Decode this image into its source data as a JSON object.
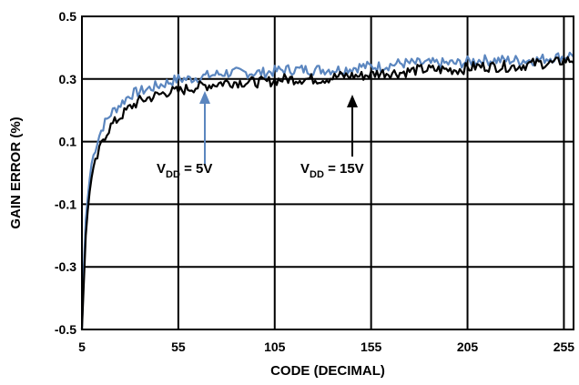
{
  "chart_data": {
    "type": "line",
    "title": "",
    "xlabel": "CODE (DECIMAL)",
    "ylabel": "GAIN ERROR (%)",
    "xlim": [
      5,
      260
    ],
    "ylim": [
      -0.5,
      0.5
    ],
    "xticks": [
      5,
      55,
      105,
      155,
      205,
      255
    ],
    "xtick_labels": [
      "5",
      "55",
      "105",
      "155",
      "205",
      "255"
    ],
    "yticks": [
      -0.5,
      -0.3,
      -0.1,
      0.1,
      0.3,
      0.5
    ],
    "ytick_labels": [
      "-0.5",
      "-0.3",
      "-0.1",
      "0.1",
      "0.3",
      "0.5"
    ],
    "grid": true,
    "series": [
      {
        "name": "",
        "color": "#5b86bf",
        "x": [
          5,
          6,
          7,
          8,
          9,
          10,
          12,
          14,
          16,
          18,
          20,
          25,
          30,
          35,
          40,
          45,
          50,
          55,
          60,
          70,
          80,
          90,
          100,
          110,
          120,
          130,
          140,
          150,
          160,
          170,
          180,
          190,
          200,
          210,
          220,
          230,
          240,
          250,
          255,
          260
        ],
        "values": [
          -0.5,
          -0.3,
          -0.15,
          -0.08,
          -0.02,
          0.03,
          0.08,
          0.12,
          0.15,
          0.17,
          0.19,
          0.22,
          0.25,
          0.26,
          0.27,
          0.28,
          0.29,
          0.3,
          0.3,
          0.31,
          0.32,
          0.32,
          0.32,
          0.33,
          0.33,
          0.33,
          0.33,
          0.34,
          0.34,
          0.35,
          0.35,
          0.35,
          0.35,
          0.36,
          0.36,
          0.36,
          0.36,
          0.37,
          0.37,
          0.38
        ]
      },
      {
        "name": "",
        "color": "#000000",
        "x": [
          5,
          6,
          7,
          8,
          9,
          10,
          12,
          14,
          16,
          18,
          20,
          25,
          30,
          35,
          40,
          45,
          50,
          55,
          60,
          70,
          80,
          90,
          100,
          110,
          120,
          130,
          140,
          150,
          160,
          170,
          180,
          190,
          200,
          210,
          220,
          230,
          240,
          250,
          255,
          260
        ],
        "values": [
          -0.5,
          -0.35,
          -0.2,
          -0.12,
          -0.06,
          -0.02,
          0.03,
          0.07,
          0.11,
          0.13,
          0.15,
          0.18,
          0.21,
          0.23,
          0.24,
          0.25,
          0.26,
          0.26,
          0.27,
          0.28,
          0.29,
          0.29,
          0.29,
          0.3,
          0.3,
          0.3,
          0.31,
          0.31,
          0.32,
          0.32,
          0.33,
          0.33,
          0.33,
          0.34,
          0.34,
          0.34,
          0.35,
          0.35,
          0.36,
          0.36
        ]
      }
    ],
    "annotations": [
      {
        "text_main": "V",
        "text_sub": "DD",
        "text_tail": " = 5V",
        "arrow_x": 66,
        "arrow_y": 0.3
      },
      {
        "text_main": "V",
        "text_sub": "DD",
        "text_tail": " = 15V",
        "arrow_x": 148,
        "arrow_y": 0.31
      }
    ]
  }
}
